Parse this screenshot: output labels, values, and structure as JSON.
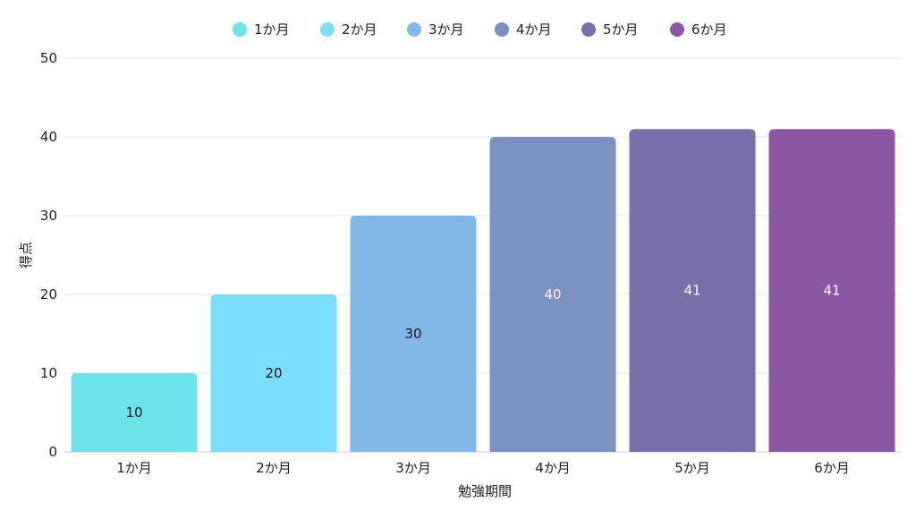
{
  "chart_data": {
    "type": "bar",
    "title": "",
    "xlabel": "勉強期間",
    "ylabel": "得点",
    "categories": [
      "1か月",
      "2か月",
      "3か月",
      "4か月",
      "5か月",
      "6か月"
    ],
    "values": [
      10,
      20,
      30,
      40,
      41,
      41
    ],
    "data_labels": [
      "10",
      "20",
      "30",
      "40",
      "41",
      "41"
    ],
    "colors": [
      "#6ae4e8",
      "#7adffd",
      "#80b9e8",
      "#7b91c2",
      "#7a6fab",
      "#8b57a2"
    ],
    "label_colors": [
      "#111111",
      "#111111",
      "#111111",
      "#ffffff",
      "#ffffff",
      "#ffffff"
    ],
    "legend": {
      "placement": "top-center",
      "entries": [
        "1か月",
        "2か月",
        "3か月",
        "4か月",
        "5か月",
        "6か月"
      ]
    },
    "ylim": [
      0,
      50
    ],
    "yticks": [
      0,
      10,
      20,
      30,
      40,
      50
    ],
    "ytick_labels": [
      "0",
      "10",
      "20",
      "30",
      "40",
      "50"
    ],
    "grid": true
  }
}
